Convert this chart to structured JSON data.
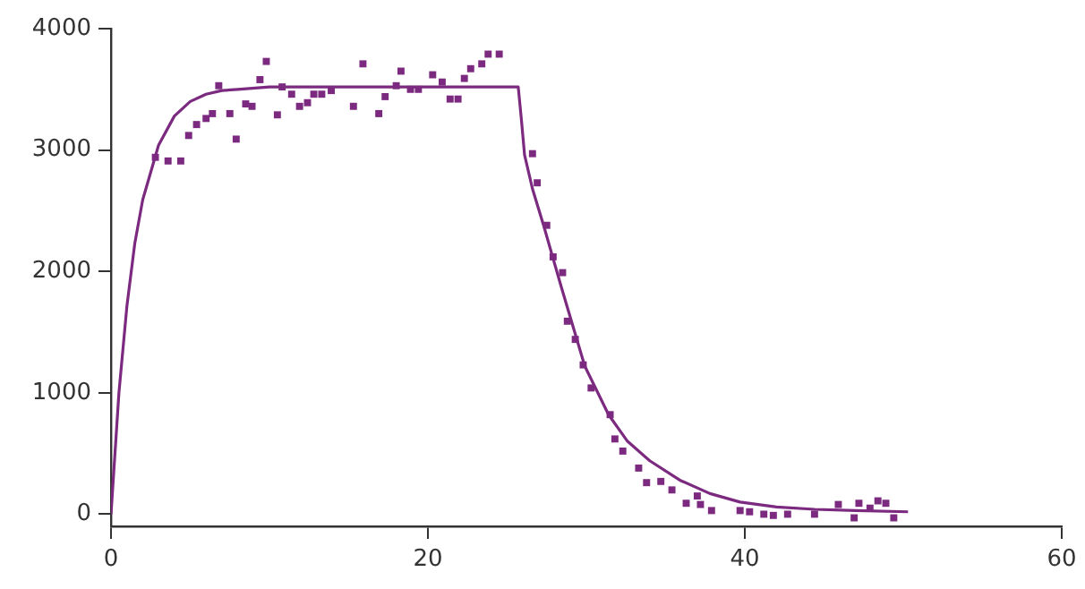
{
  "chart_data": {
    "type": "scatter",
    "xlim": [
      0,
      60
    ],
    "xticks": [
      0,
      20,
      40,
      60
    ],
    "ylim": [
      -100,
      4000
    ],
    "yticks": [
      0,
      1000,
      2000,
      3000,
      4000
    ],
    "grid": false,
    "legend": false,
    "marker": "square",
    "series": [
      {
        "color": "#7b2a80",
        "x": [
          2.8,
          3.6,
          4.4,
          4.9,
          5.4,
          6.0,
          6.4,
          6.8,
          7.5,
          7.9,
          8.5,
          8.9,
          9.4,
          9.8,
          10.5,
          10.8,
          11.4,
          11.9,
          12.4,
          12.8,
          13.3,
          13.9,
          15.3,
          15.9,
          16.9,
          17.3,
          18.0,
          18.3,
          18.9,
          19.4,
          20.3,
          20.9,
          21.4,
          21.9,
          22.3,
          22.7,
          23.4,
          23.8,
          24.5,
          26.6,
          26.9,
          27.5,
          27.9,
          28.5,
          28.8,
          29.3,
          29.8,
          30.3,
          31.5,
          31.8,
          32.3,
          33.3,
          33.8,
          34.7,
          35.4,
          36.3,
          37.0,
          37.2,
          37.9,
          39.7,
          40.3,
          41.2,
          41.8,
          42.7,
          44.4,
          45.9,
          46.9,
          47.2,
          47.9,
          48.4,
          48.9,
          49.4
        ],
        "values": [
          2940,
          2910,
          2910,
          3120,
          3210,
          3260,
          3300,
          3530,
          3300,
          3090,
          3380,
          3360,
          3580,
          3730,
          3290,
          3520,
          3460,
          3360,
          3390,
          3460,
          3460,
          3490,
          3360,
          3710,
          3300,
          3440,
          3530,
          3650,
          3500,
          3500,
          3620,
          3560,
          3420,
          3420,
          3590,
          3670,
          3710,
          3790,
          3790,
          2970,
          2730,
          2380,
          2120,
          1990,
          1590,
          1440,
          1230,
          1040,
          820,
          620,
          520,
          380,
          260,
          270,
          200,
          90,
          150,
          80,
          30,
          30,
          20,
          0,
          -10,
          0,
          0,
          80,
          -30,
          90,
          50,
          110,
          90,
          -30
        ]
      },
      {
        "type": "line",
        "color": "#7b2a80",
        "marker": "none",
        "x": [
          0,
          0.5,
          1,
          1.5,
          2,
          3,
          4,
          5,
          6,
          7,
          8,
          10,
          25.7,
          25.9,
          26.1,
          26.6,
          27.3,
          28.4,
          29.9,
          31.4,
          32.6,
          34.0,
          35.9,
          37.8,
          39.7,
          42,
          44.4,
          47,
          50.3
        ],
        "values": [
          0,
          1000,
          1710,
          2230,
          2590,
          3040,
          3280,
          3400,
          3460,
          3490,
          3500,
          3520,
          3520,
          3250,
          2960,
          2680,
          2380,
          1880,
          1220,
          820,
          600,
          440,
          280,
          170,
          100,
          60,
          40,
          30,
          20
        ]
      }
    ]
  }
}
